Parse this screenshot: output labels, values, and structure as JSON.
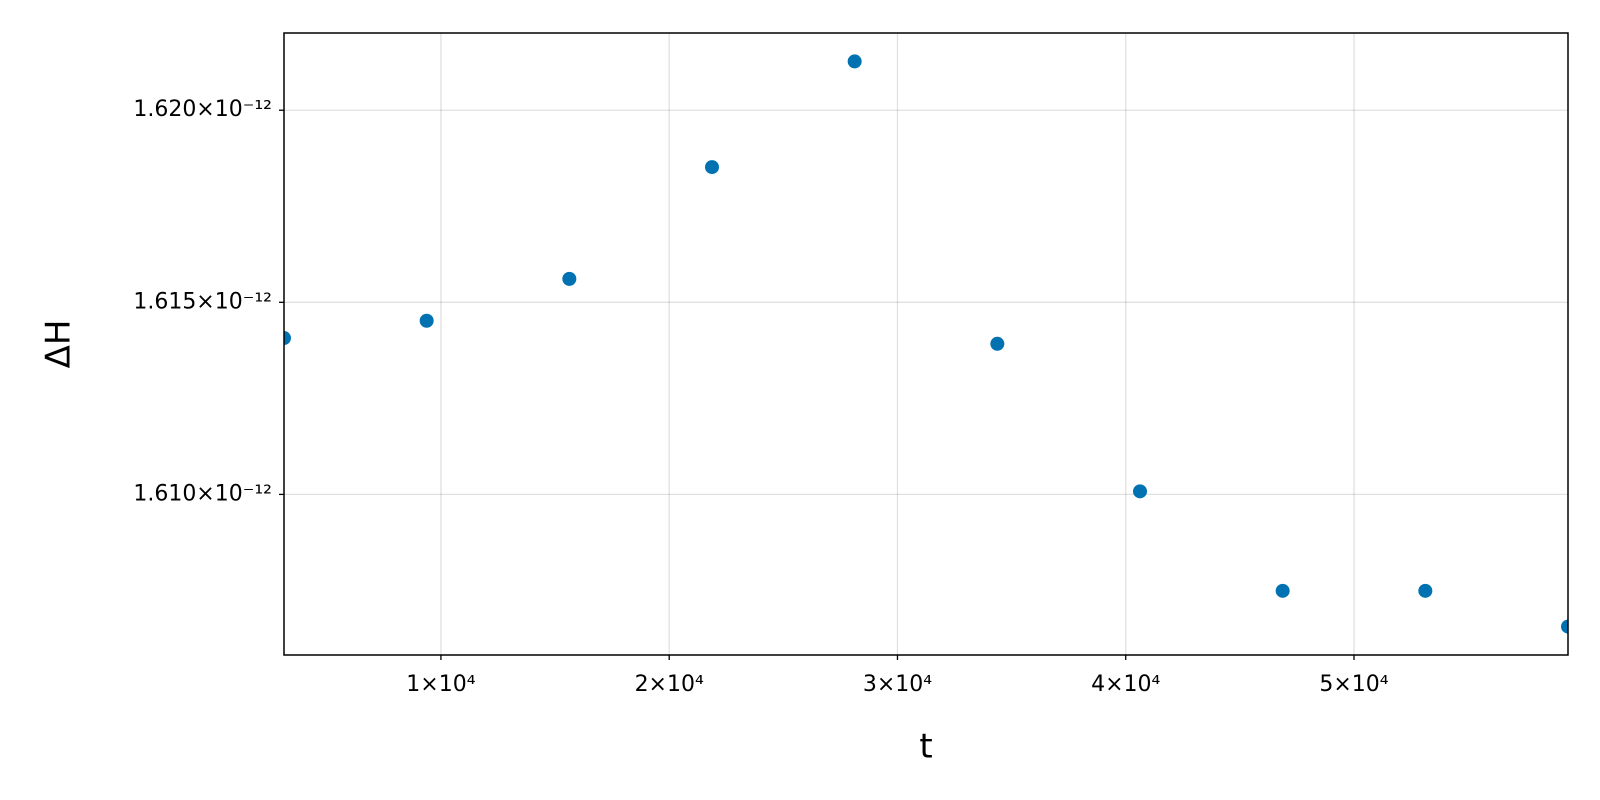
{
  "chart_data": {
    "type": "scatter",
    "xlabel": "t",
    "ylabel": "ΔH",
    "x": [
      3125,
      9375,
      15625,
      21875,
      28125,
      34375,
      40625,
      46875,
      53125,
      59375
    ],
    "series": [
      {
        "color": "#0072b2",
        "values": [
          1.61407e-12,
          1.61452e-12,
          1.61561e-12,
          1.61852e-12,
          1.62127e-12,
          1.61392e-12,
          1.61008e-12,
          1.60749e-12,
          1.60749e-12,
          1.60656e-12
        ]
      }
    ],
    "xlim": [
      3125,
      59375
    ],
    "ylim": [
      1.60582e-12,
      1.62201e-12
    ],
    "xticks": [
      {
        "value": 10000,
        "label": "1×10⁴"
      },
      {
        "value": 20000,
        "label": "2×10⁴"
      },
      {
        "value": 30000,
        "label": "3×10⁴"
      },
      {
        "value": 40000,
        "label": "4×10⁴"
      },
      {
        "value": 50000,
        "label": "5×10⁴"
      }
    ],
    "yticks": [
      {
        "value": 1.61e-12,
        "label": "1.610×10⁻¹²"
      },
      {
        "value": 1.615e-12,
        "label": "1.615×10⁻¹²"
      },
      {
        "value": 1.62e-12,
        "label": "1.620×10⁻¹²"
      }
    ],
    "grid": true
  }
}
